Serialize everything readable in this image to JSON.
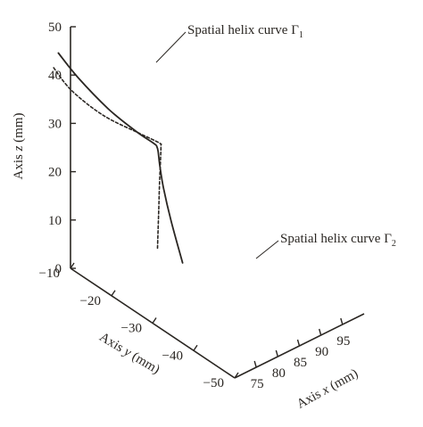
{
  "chart_data": {
    "type": "line",
    "projection": "3d",
    "grid": false,
    "legend": "none",
    "axes": {
      "z": {
        "label_prefix": "Axis ",
        "label_var": "z",
        "label_suffix": " (mm)",
        "range": [
          0,
          50
        ],
        "ticks": [
          0,
          10,
          20,
          30,
          40,
          50
        ]
      },
      "y": {
        "label_prefix": "Axis ",
        "label_var": "y",
        "label_suffix": " (mm)",
        "range": [
          -10,
          -50
        ],
        "ticks": [
          -10,
          -20,
          -30,
          -40,
          -50
        ]
      },
      "x": {
        "label_prefix": "Axis ",
        "label_var": "x",
        "label_suffix": " (mm)",
        "range": [
          70,
          100
        ],
        "ticks": [
          75,
          80,
          85,
          90,
          95
        ]
      }
    },
    "series": [
      {
        "name_text": "Spatial helix curve Γ",
        "name_sub": "1",
        "style": "solid",
        "color": "#2a2622",
        "points": [
          {
            "x": 86.0,
            "y": -20.5,
            "z": 0.0
          },
          {
            "x": 85.2,
            "y": -18.5,
            "z": 8.0
          },
          {
            "x": 84.9,
            "y": -17.0,
            "z": 14.0
          },
          {
            "x": 85.0,
            "y": -16.0,
            "z": 18.0
          },
          {
            "x": 85.1,
            "y": -15.5,
            "z": 20.5
          },
          {
            "x": 85.0,
            "y": -15.3,
            "z": 21.5
          },
          {
            "x": 84.5,
            "y": -15.1,
            "z": 22.3
          },
          {
            "x": 81.0,
            "y": -14.2,
            "z": 26.0
          },
          {
            "x": 76.0,
            "y": -12.9,
            "z": 32.0
          },
          {
            "x": 70.5,
            "y": -11.3,
            "z": 40.0
          },
          {
            "x": 67.0,
            "y": -10.2,
            "z": 46.0
          }
        ]
      },
      {
        "name_text": "Spatial helix curve Γ",
        "name_sub": "2",
        "style": "dashed",
        "color": "#2a2622",
        "points": [
          {
            "x": 85.6,
            "y": -14.8,
            "z": 0.0
          },
          {
            "x": 85.8,
            "y": -14.9,
            "z": 8.0
          },
          {
            "x": 85.9,
            "y": -15.0,
            "z": 14.0
          },
          {
            "x": 86.0,
            "y": -15.1,
            "z": 18.0
          },
          {
            "x": 86.1,
            "y": -15.1,
            "z": 21.0
          },
          {
            "x": 85.8,
            "y": -15.0,
            "z": 21.8
          },
          {
            "x": 82.0,
            "y": -14.2,
            "z": 25.0
          },
          {
            "x": 75.0,
            "y": -12.8,
            "z": 31.0
          },
          {
            "x": 69.0,
            "y": -11.3,
            "z": 38.0
          },
          {
            "x": 65.5,
            "y": -10.4,
            "z": 44.0
          }
        ]
      }
    ]
  }
}
